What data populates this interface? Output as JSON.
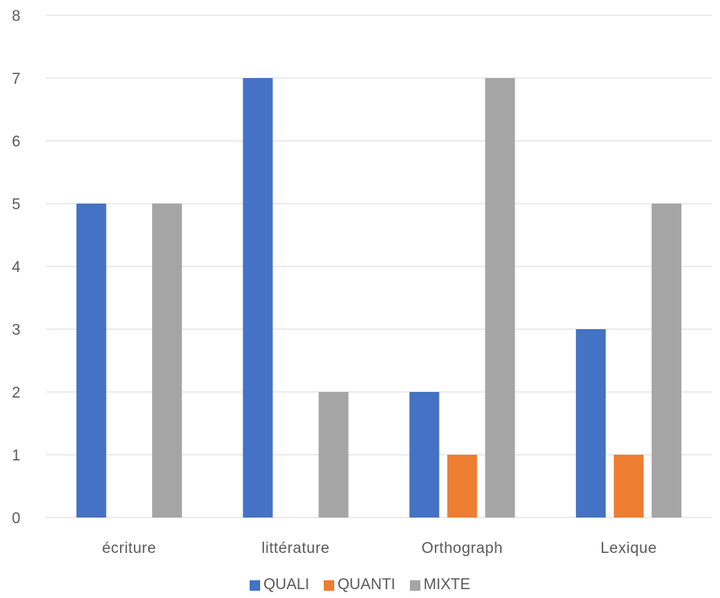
{
  "chart_data": {
    "type": "bar",
    "categories": [
      "écriture",
      "littérature",
      "Orthograph",
      "Lexique"
    ],
    "series": [
      {
        "name": "QUALI",
        "values": [
          5,
          7,
          2,
          3
        ],
        "color": "#4472C4"
      },
      {
        "name": "QUANTI",
        "values": [
          0,
          0,
          1,
          1
        ],
        "color": "#ED7D31"
      },
      {
        "name": "MIXTE",
        "values": [
          5,
          2,
          7,
          5
        ],
        "color": "#A5A5A5"
      }
    ],
    "title": "",
    "xlabel": "",
    "ylabel": "",
    "ylim": [
      0,
      8
    ],
    "yticks": [
      "0",
      "1",
      "2",
      "3",
      "4",
      "5",
      "6",
      "7",
      "8"
    ],
    "grid": true,
    "legend_position": "bottom"
  }
}
